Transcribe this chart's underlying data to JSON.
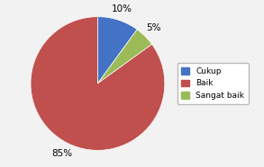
{
  "labels": [
    "Cukup",
    "Sangat baik",
    "Baik"
  ],
  "values": [
    10,
    5,
    85
  ],
  "colors": [
    "#4472C4",
    "#9BBB59",
    "#C0504D"
  ],
  "legend_labels": [
    "Cukup",
    "Baik",
    "Sangat baik"
  ],
  "legend_colors": [
    "#4472C4",
    "#C0504D",
    "#9BBB59"
  ],
  "startangle": 90,
  "background_color": "#F2F2F2",
  "text_color": "#000000",
  "fontsize": 7.5
}
